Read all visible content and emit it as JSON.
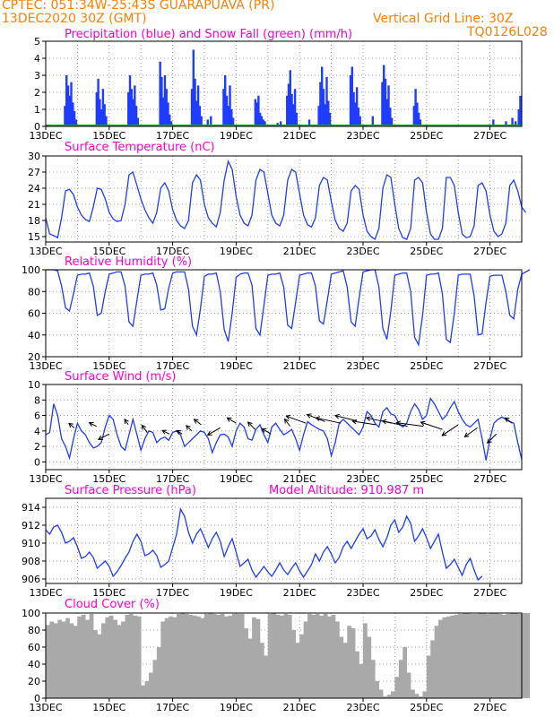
{
  "header": {
    "line1": "CPTEC:  051:34W-25:43S  GUARAPUAVA (PR)",
    "line2": "13DEC2020 30Z (GMT)",
    "grid_note": "Vertical Grid Line: 30Z",
    "code": "TQ0126L028"
  },
  "colors": {
    "header": "#ff7f00",
    "title": "#ff00cc",
    "series": "#1f3cff",
    "snow": "#00b000",
    "cloud": "#a9a9a9",
    "arrow": "#000000"
  },
  "x_tick_labels": [
    "13DEC",
    "15DEC",
    "17DEC",
    "19DEC",
    "21DEC",
    "23DEC",
    "25DEC",
    "27DEC"
  ],
  "x_range_days": [
    0,
    15
  ],
  "chart_data": [
    {
      "type": "bar",
      "title": "Precipitation (blue) and Snow Fall (green) (mm/h)",
      "ylim": [
        0,
        5
      ],
      "yticks": [
        0,
        1,
        2,
        3,
        4,
        5
      ],
      "series": [
        {
          "name": "Precipitation",
          "x_days": [
            0.6,
            0.65,
            0.7,
            0.75,
            0.8,
            0.85,
            0.9,
            0.95,
            1.6,
            1.65,
            1.7,
            1.75,
            1.8,
            1.85,
            1.9,
            2.6,
            2.65,
            2.7,
            2.75,
            2.8,
            2.85,
            2.9,
            3.6,
            3.65,
            3.7,
            3.75,
            3.8,
            3.85,
            3.9,
            3.95,
            4.6,
            4.65,
            4.7,
            4.75,
            4.8,
            4.85,
            4.9,
            5.1,
            5.2,
            5.6,
            5.65,
            5.7,
            5.75,
            5.8,
            5.85,
            5.9,
            6.6,
            6.65,
            6.7,
            6.75,
            6.8,
            6.85,
            6.9,
            7.3,
            7.4,
            7.6,
            7.65,
            7.7,
            7.75,
            7.8,
            7.85,
            7.9,
            8.3,
            8.6,
            8.65,
            8.7,
            8.75,
            8.8,
            8.85,
            8.9,
            8.95,
            9.6,
            9.65,
            9.7,
            9.75,
            9.8,
            9.85,
            9.9,
            10.3,
            10.6,
            10.65,
            10.7,
            10.75,
            10.8,
            10.85,
            10.9,
            11.6,
            11.65,
            11.7,
            11.75,
            11.8,
            14.1,
            14.5,
            14.7,
            14.8,
            14.9,
            14.95
          ],
          "values": [
            1.2,
            3.0,
            2.4,
            1.8,
            2.6,
            1.4,
            0.9,
            0.4,
            2.0,
            2.8,
            1.6,
            1.0,
            2.2,
            1.3,
            0.6,
            2.0,
            3.0,
            2.2,
            1.6,
            2.4,
            1.2,
            0.5,
            3.8,
            2.9,
            1.7,
            3.0,
            2.2,
            1.4,
            0.7,
            0.3,
            2.2,
            4.5,
            2.8,
            1.5,
            2.4,
            1.2,
            0.6,
            0.4,
            0.6,
            2.2,
            3.0,
            1.8,
            1.2,
            2.4,
            1.0,
            0.5,
            1.6,
            1.4,
            1.8,
            0.8,
            0.6,
            0.4,
            0.3,
            0.2,
            0.3,
            1.8,
            2.5,
            3.3,
            1.9,
            1.3,
            2.2,
            0.8,
            0.4,
            1.2,
            2.6,
            3.5,
            2.2,
            1.3,
            2.9,
            1.5,
            0.8,
            3.0,
            3.5,
            2.0,
            1.4,
            2.3,
            1.1,
            0.6,
            0.6,
            2.6,
            3.6,
            2.8,
            1.6,
            2.4,
            1.1,
            0.5,
            1.2,
            2.2,
            1.4,
            0.8,
            0.4,
            0.4,
            0.3,
            0.5,
            0.3,
            1.0,
            1.8
          ]
        },
        {
          "name": "Snow Fall",
          "values": [
            0
          ]
        }
      ]
    },
    {
      "type": "line",
      "title": "Surface Temperature (nC)",
      "ylim": [
        14,
        30
      ],
      "yticks": [
        15,
        18,
        21,
        24,
        27,
        30
      ],
      "hourly_step": 0.125,
      "values": [
        18.5,
        15.5,
        15.2,
        14.8,
        18.5,
        23.5,
        23.8,
        22.8,
        20.5,
        19.0,
        18.2,
        17.8,
        20.5,
        24.0,
        23.8,
        22.0,
        19.5,
        18.3,
        17.8,
        18.0,
        21.0,
        26.5,
        27.0,
        24.5,
        22.0,
        20.0,
        18.5,
        17.5,
        19.5,
        24.0,
        25.0,
        23.5,
        20.0,
        18.0,
        17.0,
        16.5,
        18.0,
        25.0,
        26.5,
        25.5,
        21.0,
        18.5,
        17.5,
        16.8,
        19.5,
        25.5,
        29.0,
        27.5,
        22.5,
        19.0,
        17.5,
        17.0,
        19.0,
        25.5,
        27.5,
        27.0,
        23.0,
        19.0,
        17.5,
        17.0,
        19.0,
        25.5,
        27.5,
        27.0,
        23.0,
        19.0,
        17.2,
        16.8,
        18.5,
        24.5,
        26.0,
        25.5,
        21.5,
        18.0,
        16.5,
        16.0,
        17.5,
        23.5,
        24.5,
        23.8,
        19.0,
        16.0,
        15.0,
        14.5,
        16.5,
        24.0,
        26.5,
        26.0,
        21.0,
        16.5,
        14.8,
        14.5,
        16.5,
        25.5,
        26.0,
        25.0,
        19.5,
        15.5,
        14.5,
        14.5,
        16.5,
        26.0,
        26.0,
        24.5,
        19.5,
        15.5,
        14.8,
        15.0,
        17.0,
        24.5,
        25.0,
        23.5,
        19.0,
        16.0,
        15.0,
        15.5,
        17.5,
        24.5,
        25.5,
        23.5,
        20.5,
        19.5
      ]
    },
    {
      "type": "line",
      "title": "Relative Humidity (%)",
      "ylim": [
        20,
        100
      ],
      "yticks": [
        20,
        40,
        60,
        80,
        100
      ],
      "hourly_step": 0.125,
      "values": [
        100,
        100,
        100,
        99,
        85,
        65,
        62,
        78,
        95,
        96,
        96,
        97,
        85,
        58,
        60,
        80,
        96,
        97,
        98,
        98,
        85,
        52,
        48,
        72,
        95,
        96,
        96,
        97,
        86,
        63,
        64,
        83,
        97,
        98,
        98,
        98,
        82,
        48,
        40,
        64,
        94,
        96,
        96,
        97,
        80,
        45,
        34,
        60,
        93,
        96,
        97,
        97,
        86,
        46,
        40,
        67,
        95,
        96,
        96,
        97,
        84,
        49,
        46,
        70,
        95,
        96,
        97,
        97,
        85,
        53,
        50,
        72,
        96,
        97,
        98,
        99,
        84,
        52,
        48,
        74,
        98,
        99,
        100,
        100,
        84,
        46,
        36,
        62,
        95,
        96,
        97,
        97,
        80,
        38,
        31,
        58,
        95,
        96,
        96,
        97,
        78,
        36,
        33,
        60,
        95,
        96,
        96,
        96,
        76,
        40,
        41,
        70,
        94,
        95,
        95,
        95,
        80,
        58,
        55,
        82,
        96,
        98,
        100
      ]
    },
    {
      "type": "line",
      "title": "Surface Wind (m/s)",
      "ylim": [
        -1,
        10
      ],
      "yticks": [
        0,
        2,
        4,
        6,
        8,
        10
      ],
      "hourly_step": 0.125,
      "values": [
        3.5,
        3.8,
        7.5,
        6.0,
        3.0,
        2.0,
        0.5,
        3.0,
        5.0,
        4.0,
        3.5,
        2.5,
        1.8,
        2.0,
        2.5,
        4.5,
        6.0,
        5.5,
        3.5,
        2.0,
        1.5,
        3.5,
        5.5,
        3.5,
        1.5,
        3.0,
        4.0,
        3.8,
        2.5,
        3.0,
        3.2,
        2.8,
        3.8,
        4.0,
        3.5,
        2.0,
        2.5,
        3.0,
        3.5,
        4.0,
        3.8,
        3.0,
        1.2,
        2.5,
        3.5,
        3.6,
        3.2,
        2.0,
        4.0,
        5.0,
        4.5,
        3.0,
        2.8,
        4.2,
        4.8,
        3.5,
        2.5,
        4.5,
        5.0,
        4.2,
        3.5,
        3.8,
        4.2,
        3.0,
        1.5,
        3.5,
        5.2,
        4.8,
        4.5,
        4.2,
        4.0,
        3.0,
        0.8,
        2.5,
        5.0,
        5.5,
        5.0,
        4.5,
        4.0,
        3.5,
        4.5,
        6.5,
        6.0,
        5.0,
        4.5,
        6.5,
        7.0,
        6.2,
        6.0,
        5.0,
        4.5,
        5.0,
        6.5,
        7.5,
        6.8,
        5.5,
        6.0,
        8.2,
        7.5,
        6.5,
        5.5,
        6.0,
        7.0,
        7.8,
        6.5,
        5.5,
        4.8,
        4.5,
        5.0,
        5.5,
        3.0,
        0.2,
        3.0,
        5.0,
        5.5,
        5.8,
        5.5,
        5.2,
        5.0,
        2.5,
        0.3
      ]
    },
    {
      "type": "line",
      "title": "Surface Pressure (hPa)",
      "subtitle": "Model Altitude: 910.987 m",
      "ylim": [
        905.5,
        915
      ],
      "yticks": [
        906,
        908,
        910,
        912,
        914
      ],
      "hourly_step": 0.125,
      "values": [
        911.5,
        911.0,
        911.8,
        912.0,
        911.2,
        910.0,
        910.2,
        910.6,
        909.6,
        908.3,
        908.5,
        909.0,
        908.4,
        907.2,
        907.6,
        908.0,
        907.4,
        906.3,
        906.8,
        907.5,
        908.3,
        909.0,
        910.2,
        911.0,
        910.2,
        908.6,
        908.8,
        909.2,
        908.6,
        907.3,
        907.6,
        908.0,
        909.5,
        911.0,
        913.8,
        913.0,
        911.2,
        910.0,
        911.0,
        911.6,
        910.6,
        909.5,
        910.5,
        911.2,
        910.2,
        908.5,
        909.6,
        910.5,
        909.0,
        907.4,
        907.8,
        908.2,
        907.0,
        906.2,
        906.8,
        907.4,
        906.8,
        906.3,
        907.0,
        907.8,
        907.0,
        906.5,
        907.2,
        907.8,
        906.9,
        906.2,
        906.9,
        907.6,
        908.8,
        908.0,
        909.0,
        909.6,
        908.8,
        907.8,
        908.4,
        909.6,
        910.2,
        909.4,
        910.2,
        911.0,
        911.6,
        910.5,
        910.8,
        911.5,
        910.4,
        909.6,
        910.6,
        912.0,
        912.6,
        911.2,
        911.8,
        913.0,
        912.2,
        910.2,
        910.8,
        911.6,
        910.6,
        909.4,
        910.2,
        911.0,
        909.0,
        907.2,
        907.6,
        908.2,
        907.3,
        906.4,
        907.6,
        908.3,
        907.0,
        905.9,
        906.3
      ]
    },
    {
      "type": "bar",
      "title": "Cloud Cover (%)",
      "ylim": [
        0,
        100
      ],
      "yticks": [
        0,
        20,
        40,
        60,
        80,
        100
      ],
      "hourly_step": 0.125,
      "values": [
        86,
        90,
        88,
        92,
        90,
        94,
        88,
        85,
        96,
        98,
        92,
        99,
        80,
        75,
        88,
        95,
        97,
        92,
        86,
        90,
        98,
        99,
        97,
        96,
        15,
        20,
        30,
        45,
        60,
        90,
        94,
        96,
        95,
        99,
        100,
        99,
        98,
        97,
        96,
        94,
        99,
        100,
        99,
        98,
        99,
        96,
        97,
        99,
        99,
        99,
        82,
        70,
        95,
        93,
        65,
        50,
        99,
        100,
        98,
        97,
        99,
        98,
        80,
        65,
        75,
        90,
        99,
        98,
        99,
        97,
        99,
        96,
        98,
        90,
        72,
        65,
        85,
        82,
        55,
        40,
        88,
        72,
        45,
        20,
        10,
        2,
        4,
        8,
        25,
        45,
        60,
        30,
        10,
        5,
        2,
        8,
        50,
        68,
        85,
        92,
        95,
        96,
        97,
        98,
        99,
        100,
        100,
        99,
        99,
        100,
        100,
        99,
        100,
        100,
        99,
        98,
        99,
        100,
        100,
        99,
        100,
        100
      ]
    }
  ]
}
